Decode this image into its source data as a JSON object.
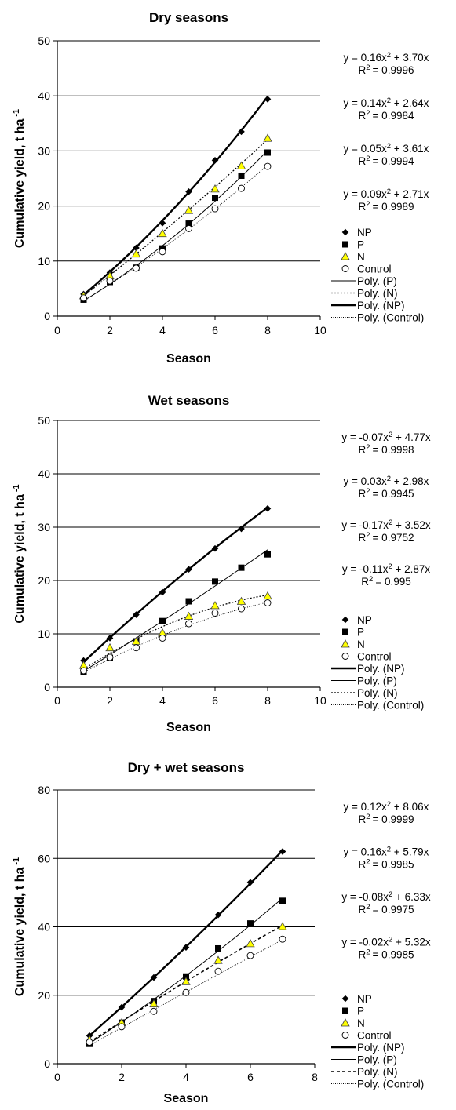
{
  "chart_data": [
    {
      "type": "scatter",
      "title": "Dry seasons",
      "xlabel": "Season",
      "ylabel": "Cumulative yield, t ha",
      "ylabel_sup": "-1",
      "xlim": [
        0,
        10
      ],
      "ylim": [
        0,
        50
      ],
      "xticks": [
        0,
        2,
        4,
        6,
        8,
        10
      ],
      "yticks": [
        0,
        10,
        20,
        30,
        40,
        50
      ],
      "grid": "horizontal",
      "legend_position": "right",
      "equations": [
        {
          "eq": "y = 0.16x",
          "eq_sup": "2",
          "eq_rest": " + 3.70x",
          "r2": "= 0.9996"
        },
        {
          "eq": "y = 0.14x",
          "eq_sup": "2",
          "eq_rest": " + 2.64x",
          "r2": "= 0.9984"
        },
        {
          "eq": "y = 0.05x",
          "eq_sup": "2",
          "eq_rest": " + 3.61x",
          "r2": "= 0.9994"
        },
        {
          "eq": "y = 0.09x",
          "eq_sup": "2",
          "eq_rest": " + 2.71x",
          "r2": "= 0.9989"
        }
      ],
      "legend": [
        {
          "kind": "marker",
          "marker": "diamond",
          "label": "NP"
        },
        {
          "kind": "marker",
          "marker": "square",
          "label": "P"
        },
        {
          "kind": "marker",
          "marker": "triangle",
          "label": "N"
        },
        {
          "kind": "marker",
          "marker": "circle",
          "label": "Control"
        },
        {
          "kind": "line",
          "style": "thin",
          "label": "Poly. (P)"
        },
        {
          "kind": "line",
          "style": "dotted",
          "label": "Poly. (N)"
        },
        {
          "kind": "line",
          "style": "thick",
          "label": "Poly. (NP)"
        },
        {
          "kind": "line",
          "style": "dotted-thin",
          "label": "Poly. (Control)"
        }
      ],
      "series": [
        {
          "name": "NP",
          "marker": "diamond",
          "line": "thick",
          "coef": [
            0.16,
            3.7
          ],
          "x": [
            1,
            2,
            3,
            4,
            5,
            6,
            7,
            8
          ],
          "values": [
            4.0,
            7.9,
            12.4,
            16.9,
            22.6,
            28.3,
            33.5,
            39.4
          ]
        },
        {
          "name": "P",
          "marker": "square",
          "line": "thin",
          "coef": [
            0.14,
            2.64
          ],
          "x": [
            1,
            2,
            3,
            4,
            5,
            6,
            7,
            8
          ],
          "values": [
            3.0,
            6.2,
            8.8,
            12.3,
            16.8,
            21.5,
            25.5,
            29.7
          ]
        },
        {
          "name": "N",
          "marker": "triangle",
          "line": "dotted",
          "coef": [
            0.05,
            3.61
          ],
          "x": [
            1,
            2,
            3,
            4,
            5,
            6,
            7,
            8
          ],
          "values": [
            3.7,
            7.3,
            11.3,
            15.0,
            19.2,
            23.1,
            27.3,
            32.3
          ]
        },
        {
          "name": "Control",
          "marker": "circle",
          "line": "dotted-thin",
          "coef": [
            0.09,
            2.71
          ],
          "x": [
            1,
            2,
            3,
            4,
            5,
            6,
            7,
            8
          ],
          "values": [
            3.3,
            6.4,
            8.7,
            11.7,
            15.9,
            19.5,
            23.2,
            27.2
          ]
        }
      ]
    },
    {
      "type": "scatter",
      "title": "Wet seasons",
      "xlabel": "Season",
      "ylabel": "Cumulative yield, t ha",
      "ylabel_sup": "-1",
      "xlim": [
        0,
        10
      ],
      "ylim": [
        0,
        50
      ],
      "xticks": [
        0,
        2,
        4,
        6,
        8,
        10
      ],
      "yticks": [
        0,
        10,
        20,
        30,
        40,
        50
      ],
      "grid": "horizontal",
      "legend_position": "right",
      "equations": [
        {
          "eq": "y = -0.07x",
          "eq_sup": "2",
          "eq_rest": " + 4.77x",
          "r2": "= 0.9998"
        },
        {
          "eq": "y = 0.03x",
          "eq_sup": "2",
          "eq_rest": " + 2.98x",
          "r2": "= 0.9945"
        },
        {
          "eq": "y = -0.17x",
          "eq_sup": "2",
          "eq_rest": " + 3.52x",
          "r2": "= 0.9752"
        },
        {
          "eq": "y = -0.11x",
          "eq_sup": "2",
          "eq_rest": " + 2.87x",
          "r2": "= 0.995"
        }
      ],
      "legend": [
        {
          "kind": "marker",
          "marker": "diamond",
          "label": "NP"
        },
        {
          "kind": "marker",
          "marker": "square",
          "label": "P"
        },
        {
          "kind": "marker",
          "marker": "triangle",
          "label": "N"
        },
        {
          "kind": "marker",
          "marker": "circle",
          "label": "Control"
        },
        {
          "kind": "line",
          "style": "thick",
          "label": "Poly. (NP)"
        },
        {
          "kind": "line",
          "style": "thin",
          "label": "Poly. (P)"
        },
        {
          "kind": "line",
          "style": "dotted",
          "label": "Poly. (N)"
        },
        {
          "kind": "line",
          "style": "dotted-thin",
          "label": "Poly. (Control)"
        }
      ],
      "series": [
        {
          "name": "NP",
          "marker": "diamond",
          "line": "thick",
          "coef": [
            -0.07,
            4.77
          ],
          "x": [
            1,
            2,
            3,
            4,
            5,
            6,
            7,
            8
          ],
          "values": [
            5.0,
            9.2,
            13.6,
            17.8,
            22.1,
            26.0,
            29.7,
            33.5
          ]
        },
        {
          "name": "P",
          "marker": "square",
          "line": "thin",
          "coef": [
            0.03,
            2.98
          ],
          "x": [
            1,
            2,
            3,
            4,
            5,
            6,
            7,
            8
          ],
          "values": [
            2.8,
            5.5,
            8.6,
            12.4,
            16.1,
            19.8,
            22.4,
            24.9
          ]
        },
        {
          "name": "N",
          "marker": "triangle",
          "line": "dotted",
          "coef": [
            -0.17,
            3.52
          ],
          "x": [
            1,
            2,
            3,
            4,
            5,
            6,
            7,
            8
          ],
          "values": [
            4.1,
            7.4,
            8.6,
            10.2,
            13.3,
            15.3,
            16.1,
            17.1
          ]
        },
        {
          "name": "Control",
          "marker": "circle",
          "line": "dotted-thin",
          "coef": [
            -0.11,
            2.87
          ],
          "x": [
            1,
            2,
            3,
            4,
            5,
            6,
            7,
            8
          ],
          "values": [
            3.1,
            5.6,
            7.4,
            9.2,
            11.9,
            13.9,
            14.7,
            15.8
          ]
        }
      ]
    },
    {
      "type": "scatter",
      "title": "Dry + wet seasons",
      "xlabel": "Season",
      "ylabel": "Cumulative yield, t ha",
      "ylabel_sup": "-1",
      "xlim": [
        0,
        8
      ],
      "ylim": [
        0,
        80
      ],
      "xticks": [
        0,
        2,
        4,
        6,
        8
      ],
      "yticks": [
        0,
        20,
        40,
        60,
        80
      ],
      "grid": "horizontal",
      "legend_position": "right",
      "equations": [
        {
          "eq": "y = 0.12x",
          "eq_sup": "2",
          "eq_rest": " + 8.06x",
          "r2": "= 0.9999"
        },
        {
          "eq": "y = 0.16x",
          "eq_sup": "2",
          "eq_rest": " + 5.79x",
          "r2": "= 0.9985"
        },
        {
          "eq": "y = -0.08x",
          "eq_sup": "2",
          "eq_rest": " + 6.33x",
          "r2": "= 0.9975"
        },
        {
          "eq": "y = -0.02x",
          "eq_sup": "2",
          "eq_rest": " + 5.32x",
          "r2": "= 0.9985"
        }
      ],
      "legend": [
        {
          "kind": "marker",
          "marker": "diamond",
          "label": "NP"
        },
        {
          "kind": "marker",
          "marker": "square",
          "label": "P"
        },
        {
          "kind": "marker",
          "marker": "triangle",
          "label": "N"
        },
        {
          "kind": "marker",
          "marker": "circle",
          "label": "Control"
        },
        {
          "kind": "line",
          "style": "thick",
          "label": "Poly. (NP)"
        },
        {
          "kind": "line",
          "style": "thin",
          "label": "Poly. (P)"
        },
        {
          "kind": "line",
          "style": "dashed",
          "label": "Poly. (N)"
        },
        {
          "kind": "line",
          "style": "dotted-thin",
          "label": "Poly. (Control)"
        }
      ],
      "series": [
        {
          "name": "NP",
          "marker": "diamond",
          "line": "thick",
          "coef": [
            0.12,
            8.06
          ],
          "x": [
            1,
            2,
            3,
            4,
            5,
            6,
            7
          ],
          "values": [
            8.2,
            16.5,
            25.2,
            34.0,
            43.5,
            53.0,
            62.0
          ]
        },
        {
          "name": "P",
          "marker": "square",
          "line": "thin",
          "coef": [
            0.16,
            5.79
          ],
          "x": [
            1,
            2,
            3,
            4,
            5,
            6,
            7
          ],
          "values": [
            5.8,
            12.0,
            18.3,
            25.5,
            33.7,
            41.0,
            47.6
          ]
        },
        {
          "name": "N",
          "marker": "triangle",
          "line": "dashed",
          "coef": [
            -0.08,
            6.33
          ],
          "x": [
            1,
            2,
            3,
            4,
            5,
            6,
            7
          ],
          "values": [
            7.0,
            12.0,
            17.5,
            24.0,
            30.2,
            35.1,
            40.1
          ]
        },
        {
          "name": "Control",
          "marker": "circle",
          "line": "dotted-thin",
          "coef": [
            -0.02,
            5.32
          ],
          "x": [
            1,
            2,
            3,
            4,
            5,
            6,
            7
          ],
          "values": [
            6.3,
            10.8,
            15.3,
            20.8,
            27.0,
            31.6,
            36.4
          ]
        }
      ]
    }
  ],
  "colors": {
    "axis": "#000000",
    "grid": "#000000",
    "triangle_fill": "#ffff00",
    "marker": "#000000"
  }
}
